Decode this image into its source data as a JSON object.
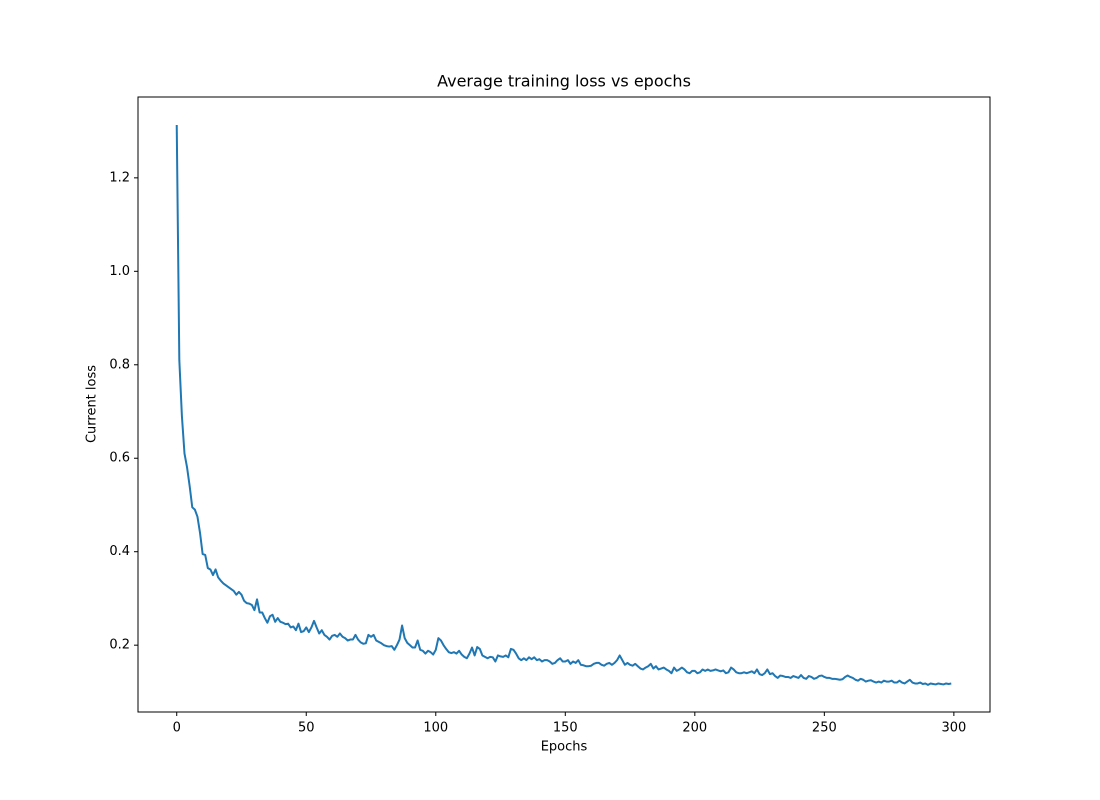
{
  "chart_data": {
    "type": "line",
    "title": "Average training loss vs epochs",
    "xlabel": "Epochs",
    "ylabel": "Current loss",
    "x": [
      0,
      1,
      2,
      3,
      4,
      5,
      6,
      7,
      8,
      9,
      10,
      11,
      12,
      13,
      14,
      15,
      16,
      17,
      18,
      19,
      20,
      21,
      22,
      23,
      24,
      25,
      26,
      27,
      28,
      29,
      30,
      31,
      32,
      33,
      34,
      35,
      36,
      37,
      38,
      39,
      40,
      41,
      42,
      43,
      44,
      45,
      46,
      47,
      48,
      49,
      50,
      51,
      52,
      53,
      54,
      55,
      56,
      57,
      58,
      59,
      60,
      61,
      62,
      63,
      64,
      65,
      66,
      67,
      68,
      69,
      70,
      71,
      72,
      73,
      74,
      75,
      76,
      77,
      78,
      79,
      80,
      81,
      82,
      83,
      84,
      85,
      86,
      87,
      88,
      89,
      90,
      91,
      92,
      93,
      94,
      95,
      96,
      97,
      98,
      99,
      100,
      101,
      102,
      103,
      104,
      105,
      106,
      107,
      108,
      109,
      110,
      111,
      112,
      113,
      114,
      115,
      116,
      117,
      118,
      119,
      120,
      121,
      122,
      123,
      124,
      125,
      126,
      127,
      128,
      129,
      130,
      131,
      132,
      133,
      134,
      135,
      136,
      137,
      138,
      139,
      140,
      141,
      142,
      143,
      144,
      145,
      146,
      147,
      148,
      149,
      150,
      151,
      152,
      153,
      154,
      155,
      156,
      157,
      158,
      159,
      160,
      161,
      162,
      163,
      164,
      165,
      166,
      167,
      168,
      169,
      170,
      171,
      172,
      173,
      174,
      175,
      176,
      177,
      178,
      179,
      180,
      181,
      182,
      183,
      184,
      185,
      186,
      187,
      188,
      189,
      190,
      191,
      192,
      193,
      194,
      195,
      196,
      197,
      198,
      199,
      200,
      201,
      202,
      203,
      204,
      205,
      206,
      207,
      208,
      209,
      210,
      211,
      212,
      213,
      214,
      215,
      216,
      217,
      218,
      219,
      220,
      221,
      222,
      223,
      224,
      225,
      226,
      227,
      228,
      229,
      230,
      231,
      232,
      233,
      234,
      235,
      236,
      237,
      238,
      239,
      240,
      241,
      242,
      243,
      244,
      245,
      246,
      247,
      248,
      249,
      250,
      251,
      252,
      253,
      254,
      255,
      256,
      257,
      258,
      259,
      260,
      261,
      262,
      263,
      264,
      265,
      266,
      267,
      268,
      269,
      270,
      271,
      272,
      273,
      274,
      275,
      276,
      277,
      278,
      279,
      280,
      281,
      282,
      283,
      284,
      285,
      286,
      287,
      288,
      289,
      290,
      291,
      292,
      293,
      294,
      295,
      296,
      297,
      298,
      299
    ],
    "series": [
      {
        "color": "#1f77b4",
        "values": [
          1.313,
          0.81,
          0.69,
          0.61,
          0.58,
          0.54,
          0.495,
          0.49,
          0.475,
          0.44,
          0.395,
          0.393,
          0.365,
          0.362,
          0.35,
          0.362,
          0.345,
          0.338,
          0.332,
          0.328,
          0.324,
          0.32,
          0.316,
          0.308,
          0.314,
          0.308,
          0.295,
          0.29,
          0.289,
          0.286,
          0.275,
          0.298,
          0.27,
          0.27,
          0.258,
          0.248,
          0.262,
          0.265,
          0.25,
          0.258,
          0.25,
          0.248,
          0.245,
          0.246,
          0.238,
          0.24,
          0.232,
          0.246,
          0.228,
          0.23,
          0.238,
          0.228,
          0.238,
          0.252,
          0.238,
          0.225,
          0.232,
          0.222,
          0.218,
          0.212,
          0.22,
          0.222,
          0.218,
          0.225,
          0.218,
          0.215,
          0.21,
          0.212,
          0.212,
          0.222,
          0.212,
          0.206,
          0.203,
          0.204,
          0.222,
          0.218,
          0.222,
          0.21,
          0.207,
          0.204,
          0.2,
          0.198,
          0.197,
          0.198,
          0.19,
          0.2,
          0.212,
          0.242,
          0.215,
          0.205,
          0.2,
          0.195,
          0.195,
          0.21,
          0.19,
          0.188,
          0.182,
          0.188,
          0.185,
          0.18,
          0.19,
          0.215,
          0.21,
          0.2,
          0.192,
          0.185,
          0.183,
          0.185,
          0.182,
          0.188,
          0.18,
          0.175,
          0.172,
          0.182,
          0.195,
          0.178,
          0.196,
          0.192,
          0.178,
          0.175,
          0.172,
          0.175,
          0.174,
          0.165,
          0.178,
          0.176,
          0.175,
          0.178,
          0.174,
          0.192,
          0.19,
          0.182,
          0.172,
          0.168,
          0.172,
          0.168,
          0.174,
          0.17,
          0.174,
          0.168,
          0.17,
          0.165,
          0.168,
          0.168,
          0.165,
          0.16,
          0.162,
          0.168,
          0.172,
          0.165,
          0.165,
          0.168,
          0.16,
          0.165,
          0.162,
          0.168,
          0.158,
          0.157,
          0.155,
          0.155,
          0.156,
          0.16,
          0.162,
          0.162,
          0.158,
          0.156,
          0.16,
          0.162,
          0.158,
          0.162,
          0.168,
          0.178,
          0.168,
          0.158,
          0.162,
          0.158,
          0.156,
          0.16,
          0.155,
          0.15,
          0.148,
          0.152,
          0.155,
          0.16,
          0.15,
          0.155,
          0.148,
          0.15,
          0.152,
          0.148,
          0.145,
          0.14,
          0.152,
          0.145,
          0.148,
          0.152,
          0.148,
          0.142,
          0.14,
          0.145,
          0.145,
          0.14,
          0.142,
          0.148,
          0.145,
          0.148,
          0.145,
          0.146,
          0.148,
          0.146,
          0.144,
          0.146,
          0.14,
          0.142,
          0.152,
          0.148,
          0.142,
          0.14,
          0.14,
          0.142,
          0.14,
          0.142,
          0.144,
          0.14,
          0.148,
          0.138,
          0.136,
          0.14,
          0.148,
          0.138,
          0.14,
          0.134,
          0.13,
          0.135,
          0.134,
          0.132,
          0.132,
          0.13,
          0.134,
          0.132,
          0.13,
          0.136,
          0.13,
          0.128,
          0.134,
          0.132,
          0.128,
          0.13,
          0.134,
          0.135,
          0.132,
          0.13,
          0.13,
          0.128,
          0.128,
          0.127,
          0.126,
          0.127,
          0.132,
          0.135,
          0.132,
          0.13,
          0.126,
          0.124,
          0.128,
          0.126,
          0.122,
          0.124,
          0.125,
          0.122,
          0.12,
          0.122,
          0.12,
          0.124,
          0.122,
          0.122,
          0.124,
          0.12,
          0.12,
          0.124,
          0.12,
          0.118,
          0.122,
          0.126,
          0.12,
          0.118,
          0.118,
          0.12,
          0.117,
          0.118,
          0.115,
          0.118,
          0.117,
          0.116,
          0.118,
          0.117,
          0.116,
          0.118,
          0.117,
          0.118
        ]
      }
    ],
    "xlim": [
      -14.95,
      313.95
    ],
    "xticks": [
      0,
      50,
      100,
      150,
      200,
      250,
      300
    ],
    "ylim": [
      0.057,
      1.373
    ],
    "yticks": [
      0.2,
      0.4,
      0.6,
      0.8,
      {
        "value": 1,
        "label": "1.0"
      },
      1.2
    ],
    "grid": false
  }
}
